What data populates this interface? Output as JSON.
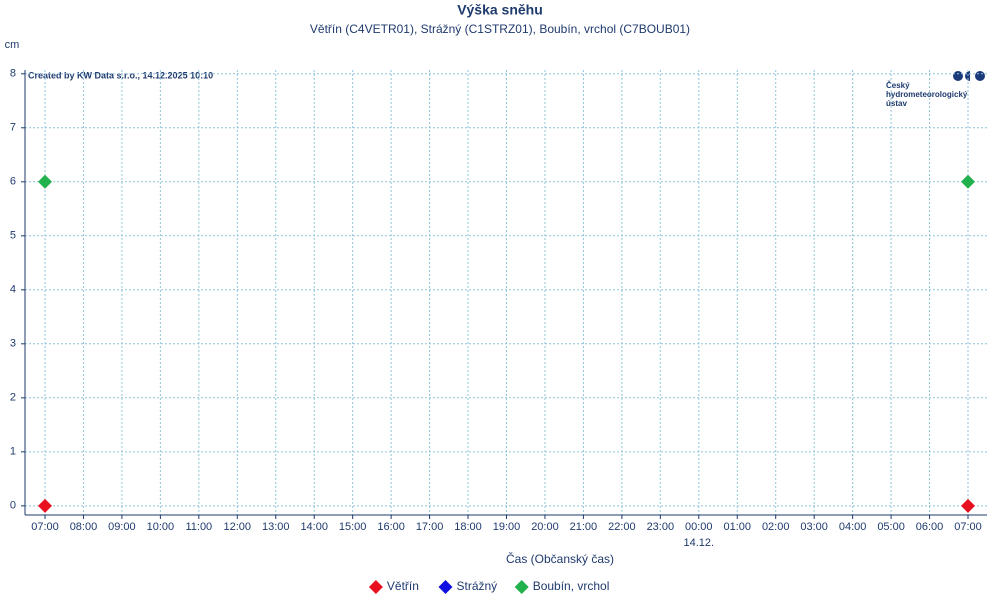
{
  "chart_data": {
    "type": "scatter",
    "title": "Výška sněhu",
    "subtitle": "Větřín (C4VETR01), Strážný (C1STRZ01), Boubín, vrchol (C7BOUB01)",
    "y_unit": "cm",
    "credit": "Created by KW Data s.r.o., 14.12.2025 10:10",
    "logo": [
      "Český",
      "hydrometeorologický",
      "ústav"
    ],
    "x_label": "Čas (Občanský čas)",
    "categories": [
      "07:00",
      "08:00",
      "09:00",
      "10:00",
      "11:00",
      "12:00",
      "13:00",
      "14:00",
      "15:00",
      "16:00",
      "17:00",
      "18:00",
      "19:00",
      "20:00",
      "21:00",
      "22:00",
      "23:00",
      "00:00",
      "01:00",
      "02:00",
      "03:00",
      "04:00",
      "05:00",
      "06:00",
      "07:00"
    ],
    "x_sublabels": [
      null,
      null,
      null,
      null,
      null,
      null,
      null,
      null,
      null,
      null,
      null,
      null,
      null,
      null,
      null,
      null,
      null,
      "14.12.",
      null,
      null,
      null,
      null,
      null,
      null,
      null
    ],
    "series": [
      {
        "name": "Větřín",
        "color": "#e8101e",
        "values": [
          0,
          null,
          null,
          null,
          null,
          null,
          null,
          null,
          null,
          null,
          null,
          null,
          null,
          null,
          null,
          null,
          null,
          null,
          null,
          null,
          null,
          null,
          null,
          null,
          0
        ]
      },
      {
        "name": "Strážný",
        "color": "#1010e0",
        "values": [
          null,
          null,
          null,
          null,
          null,
          null,
          null,
          null,
          null,
          null,
          null,
          null,
          null,
          null,
          null,
          null,
          null,
          null,
          null,
          null,
          null,
          null,
          null,
          null,
          null
        ]
      },
      {
        "name": "Boubín, vrchol",
        "color": "#22b14c",
        "values": [
          6,
          null,
          null,
          null,
          null,
          null,
          null,
          null,
          null,
          null,
          null,
          null,
          null,
          null,
          null,
          null,
          null,
          null,
          null,
          null,
          null,
          null,
          null,
          null,
          6
        ]
      }
    ],
    "ylim": [
      -0.17,
      8.07
    ],
    "yticks": [
      0,
      1,
      2,
      3,
      4,
      5,
      6,
      7,
      8
    ],
    "grid": true
  }
}
